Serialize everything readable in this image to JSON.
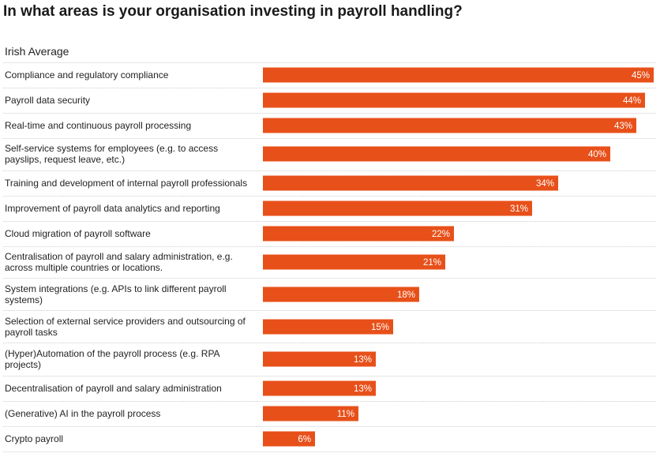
{
  "title": "In what areas is your organisation investing in payroll handling?",
  "subtitle": "Irish Average",
  "colors": {
    "bar": "#e8501a",
    "separator": "#cccccc"
  },
  "chart_data": {
    "type": "bar",
    "orientation": "horizontal",
    "title": "In what areas is your organisation investing in payroll handling?",
    "subtitle": "Irish Average",
    "xlim": [
      0,
      45
    ],
    "value_suffix": "%",
    "categories": [
      [
        "Compliance and regulatory compliance"
      ],
      [
        "Payroll data security"
      ],
      [
        "Real-time and continuous payroll processing"
      ],
      [
        "Self-service systems for employees (e.g. to access",
        "payslips, request leave, etc.)"
      ],
      [
        "Training and development of internal payroll professionals"
      ],
      [
        "Improvement of payroll data analytics and reporting"
      ],
      [
        "Cloud migration of payroll software"
      ],
      [
        "Centralisation of payroll and salary administration, e.g.",
        "across multiple countries or locations."
      ],
      [
        "System integrations (e.g. APIs to link different payroll",
        "systems)"
      ],
      [
        "Selection of external service providers and outsourcing of",
        "payroll tasks"
      ],
      [
        "(Hyper)Automation of the payroll process (e.g. RPA",
        "projects)"
      ],
      [
        "Decentralisation of payroll and salary administration"
      ],
      [
        "(Generative) AI in the payroll process"
      ],
      [
        "Crypto payroll"
      ]
    ],
    "values": [
      45,
      44,
      43,
      40,
      34,
      31,
      22,
      21,
      18,
      15,
      13,
      13,
      11,
      6
    ],
    "value_labels": [
      "45%",
      "44%",
      "43%",
      "40%",
      "34%",
      "31%",
      "22%",
      "21%",
      "18%",
      "15%",
      "13%",
      "13%",
      "11%",
      "6%"
    ]
  }
}
